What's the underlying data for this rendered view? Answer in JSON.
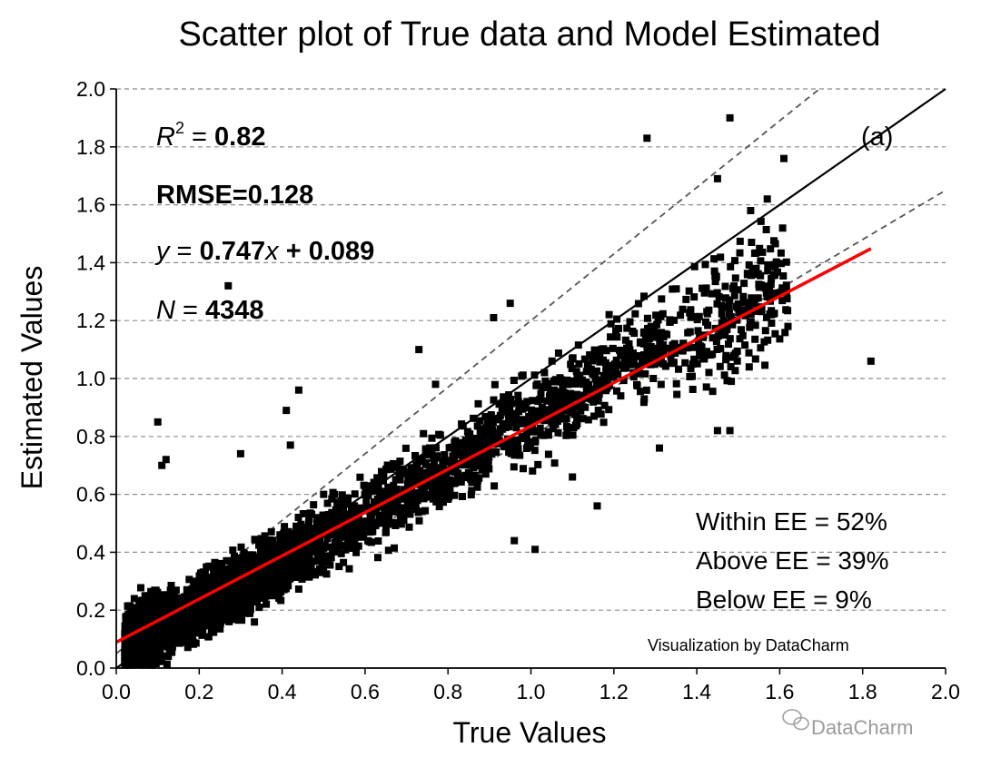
{
  "chart_data": {
    "type": "scatter",
    "title": "Scatter plot of True data and Model Estimated",
    "xlabel": "True Values",
    "ylabel": "Estimated Values",
    "xlim": [
      0.0,
      2.0
    ],
    "ylim": [
      0.0,
      2.0
    ],
    "x_ticks": [
      "0.0",
      "0.2",
      "0.4",
      "0.6",
      "0.8",
      "1.0",
      "1.2",
      "1.4",
      "1.6",
      "1.8",
      "2.0"
    ],
    "y_ticks": [
      "0.0",
      "0.2",
      "0.4",
      "0.6",
      "0.8",
      "1.0",
      "1.2",
      "1.4",
      "1.6",
      "1.8",
      "2.0"
    ],
    "grid": "horizontal dashed",
    "panel_label": "(a)",
    "stats": {
      "r2_label": "R",
      "r2_sup": "2",
      "r2_eq": " = ",
      "r2_value": "0.82",
      "rmse": "RMSE=0.128",
      "fit_y": "y",
      "fit_eq": " = ",
      "fit_slope": "0.747",
      "fit_x": "x",
      "fit_intercept": " + 0.089",
      "n_label": "N",
      "n_eq": " = ",
      "n_value": "4348"
    },
    "ee_stats": [
      "Within EE = 52%",
      "Above EE = 39%",
      "Below EE = 9%"
    ],
    "credit": "Visualization by DataCharm",
    "watermark": "DataCharm",
    "n_points": 4348,
    "lines": {
      "one_to_one": {
        "slope": 1.0,
        "intercept": 0.0,
        "color": "#000000",
        "style": "solid"
      },
      "ee_upper": {
        "slope": 1.15,
        "intercept": 0.05,
        "color": "#555555",
        "style": "dashed"
      },
      "ee_lower": {
        "slope": 0.85,
        "intercept": -0.05,
        "color": "#555555",
        "style": "dashed"
      },
      "regression": {
        "slope": 0.747,
        "intercept": 0.089,
        "x_range": [
          0.0,
          1.82
        ],
        "color": "#ff0000",
        "style": "solid"
      }
    },
    "outlier_points": [
      [
        0.27,
        1.32
      ],
      [
        0.1,
        0.85
      ],
      [
        0.11,
        0.7
      ],
      [
        0.12,
        0.72
      ],
      [
        0.44,
        0.96
      ],
      [
        0.41,
        0.89
      ],
      [
        0.3,
        0.74
      ],
      [
        0.42,
        0.77
      ],
      [
        1.28,
        1.83
      ],
      [
        1.48,
        1.9
      ],
      [
        1.82,
        1.06
      ],
      [
        1.61,
        1.76
      ],
      [
        1.45,
        1.69
      ],
      [
        1.62,
        1.18
      ],
      [
        1.16,
        0.56
      ],
      [
        1.01,
        0.41
      ],
      [
        0.91,
        1.21
      ],
      [
        0.77,
        0.98
      ],
      [
        0.96,
        0.44
      ],
      [
        1.45,
        0.82
      ],
      [
        1.48,
        0.82
      ],
      [
        1.31,
        0.76
      ],
      [
        1.1,
        0.66
      ],
      [
        1.05,
        0.85
      ],
      [
        1.57,
        1.62
      ],
      [
        1.53,
        1.58
      ],
      [
        0.73,
        1.1
      ],
      [
        0.5,
        0.6
      ],
      [
        0.95,
        1.26
      ]
    ],
    "clusters": [
      {
        "x_range": [
          0.02,
          0.1
        ],
        "y_center_slope": 1.0,
        "y_center_intercept": 0.05,
        "y_spread": 0.11,
        "count": 1100
      },
      {
        "x_range": [
          0.08,
          0.45
        ],
        "y_center_slope": 0.75,
        "y_center_intercept": 0.06,
        "y_spread": 0.1,
        "count": 1800
      },
      {
        "x_range": [
          0.45,
          0.9
        ],
        "y_center_slope": 0.8,
        "y_center_intercept": 0.05,
        "y_spread": 0.12,
        "count": 700
      },
      {
        "x_range": [
          0.9,
          1.35
        ],
        "y_center_slope": 0.82,
        "y_center_intercept": 0.05,
        "y_spread": 0.15,
        "count": 480
      },
      {
        "x_range": [
          1.35,
          1.62
        ],
        "y_center_slope": 0.82,
        "y_center_intercept": 0.0,
        "y_spread": 0.2,
        "count": 240
      }
    ]
  }
}
